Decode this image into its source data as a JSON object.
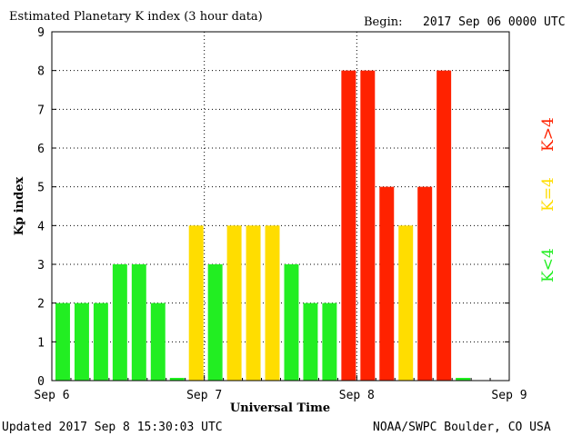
{
  "header": {
    "title": "Estimated Planetary K index (3 hour data)",
    "begin_label": "Begin:",
    "begin_value": "2017 Sep 06 0000 UTC"
  },
  "footer": {
    "updated": "Updated 2017 Sep  8 15:30:03 UTC",
    "source": "NOAA/SWPC Boulder, CO USA"
  },
  "legend": {
    "low": "K<4",
    "mid": "K=4",
    "high": "K>4"
  },
  "colors": {
    "low": "#22ee22",
    "mid": "#ffdd00",
    "high": "#ff2200",
    "grid": "#000000",
    "background": "#ffffff"
  },
  "chart_data": {
    "type": "bar",
    "title": "Estimated Planetary K index (3 hour data)",
    "xlabel": "Universal Time",
    "ylabel": "Kp index",
    "ylim": [
      0,
      9
    ],
    "y_ticks": [
      "0",
      "1",
      "2",
      "3",
      "4",
      "5",
      "6",
      "7",
      "8",
      "9"
    ],
    "x_ticks": [
      "Sep 6",
      "Sep 7",
      "Sep 8",
      "Sep 9"
    ],
    "grid": "dotted",
    "legend_placement": "right",
    "bar_interval_hours": 3,
    "slots_total": 24,
    "categories": [
      "Sep 6 00",
      "Sep 6 03",
      "Sep 6 06",
      "Sep 6 09",
      "Sep 6 12",
      "Sep 6 15",
      "Sep 6 18",
      "Sep 6 21",
      "Sep 7 00",
      "Sep 7 03",
      "Sep 7 06",
      "Sep 7 09",
      "Sep 7 12",
      "Sep 7 15",
      "Sep 7 18",
      "Sep 7 21",
      "Sep 8 00",
      "Sep 8 03",
      "Sep 8 06",
      "Sep 8 09",
      "Sep 8 12",
      "Sep 8 15"
    ],
    "values": [
      2,
      2,
      2,
      3,
      3,
      2,
      0,
      4,
      3,
      4,
      4,
      4,
      3,
      2,
      2,
      8,
      8,
      5,
      4,
      5,
      8,
      0
    ]
  }
}
